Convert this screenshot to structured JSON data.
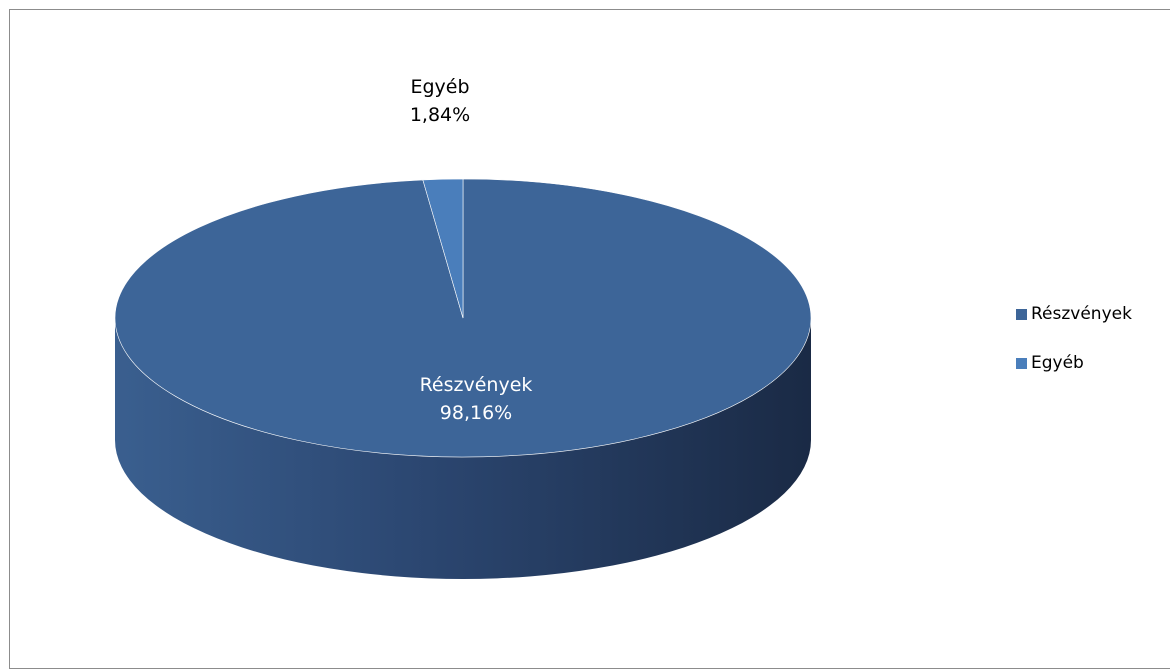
{
  "chart_data": {
    "type": "pie",
    "title": "",
    "slices": [
      {
        "name": "Részvények",
        "value": 98.16,
        "label": "98,16%",
        "color": "#3D6598"
      },
      {
        "name": "Egyéb",
        "value": 1.84,
        "label": "1,84%",
        "color": "#4A7EBB"
      }
    ],
    "legend_position": "right",
    "three_d": true
  },
  "colors": {
    "border": "#8C8C8C",
    "side_dark": "#1B2B47",
    "side_light": "#3A5F8F"
  }
}
